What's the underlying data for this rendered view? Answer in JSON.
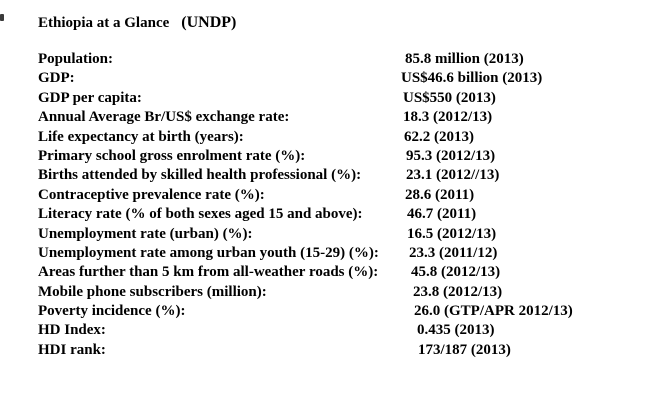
{
  "page": {
    "background_color": "#ffffff",
    "text_color": "#000000"
  },
  "title": {
    "main": "Ethiopia at a Glance",
    "suffix": "(UNDP)"
  },
  "stats": [
    {
      "label": "Population:",
      "value": "85.8 million (2013)"
    },
    {
      "label": "GDP:",
      "value": "US$46.6 billion (2013)"
    },
    {
      "label": "GDP per capita:",
      "value": "US$550 (2013)"
    },
    {
      "label": "Annual Average Br/US$ exchange rate:",
      "value": "18.3 (2012/13)"
    },
    {
      "label": "Life expectancy at birth (years):",
      "value": "62.2 (2013)"
    },
    {
      "label": "Primary school gross enrolment rate (%):",
      "value": "95.3 (2012/13)"
    },
    {
      "label": "Births attended by skilled health professional (%):",
      "value": "23.1 (2012//13)"
    },
    {
      "label": "Contraceptive prevalence rate (%):",
      "value": "28.6 (2011)"
    },
    {
      "label": "Literacy rate (% of both sexes aged 15 and above):",
      "value": "46.7 (2011)"
    },
    {
      "label": "Unemployment rate (urban) (%):",
      "value": "16.5 (2012/13)"
    },
    {
      "label": "Unemployment rate among urban youth (15-29) (%):",
      "value": "23.3 (2011/12)"
    },
    {
      "label": "Areas further than 5 km from all-weather roads (%):",
      "value": "45.8 (2012/13)"
    },
    {
      "label": "Mobile phone subscribers (million):",
      "value": "23.8 (2012/13)"
    },
    {
      "label": "Poverty incidence (%):",
      "value": "26.0 (GTP/APR 2012/13)"
    },
    {
      "label": "HD Index:",
      "value": "0.435 (2013)"
    },
    {
      "label": "HDI rank:",
      "value": "173/187 (2013)"
    }
  ]
}
